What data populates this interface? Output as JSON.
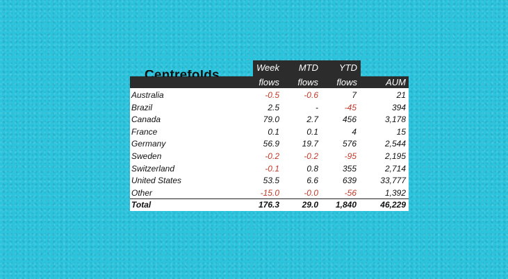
{
  "ghost_title": "Centrefolds",
  "headers": {
    "week_line1": "Week",
    "week_line2": "flows",
    "mtd_line1": "MTD",
    "mtd_line2": "flows",
    "ytd_line1": "YTD",
    "ytd_line2": "flows",
    "aum": "AUM"
  },
  "rows": [
    {
      "country": "Australia",
      "week": "-0.5",
      "mtd": "-0.6",
      "ytd": "7",
      "aum": "21"
    },
    {
      "country": "Brazil",
      "week": "2.5",
      "mtd": "-",
      "ytd": "-45",
      "aum": "394"
    },
    {
      "country": "Canada",
      "week": "79.0",
      "mtd": "2.7",
      "ytd": "456",
      "aum": "3,178"
    },
    {
      "country": "France",
      "week": "0.1",
      "mtd": "0.1",
      "ytd": "4",
      "aum": "15"
    },
    {
      "country": "Germany",
      "week": "56.9",
      "mtd": "19.7",
      "ytd": "576",
      "aum": "2,544"
    },
    {
      "country": "Sweden",
      "week": "-0.2",
      "mtd": "-0.2",
      "ytd": "-95",
      "aum": "2,195"
    },
    {
      "country": "Switzerland",
      "week": "-0.1",
      "mtd": "0.8",
      "ytd": "355",
      "aum": "2,714"
    },
    {
      "country": "United States",
      "week": "53.5",
      "mtd": "6.6",
      "ytd": "639",
      "aum": "33,777"
    },
    {
      "country": "Other",
      "week": "-15.0",
      "mtd": "-0.0",
      "ytd": "-56",
      "aum": "1,392"
    }
  ],
  "total": {
    "label": "Total",
    "week": "176.3",
    "mtd": "29.0",
    "ytd": "1,840",
    "aum": "46,229"
  },
  "colors": {
    "negative": "#c0392b",
    "header_bg": "#2c2c2c",
    "background": "#2cc3dd"
  }
}
